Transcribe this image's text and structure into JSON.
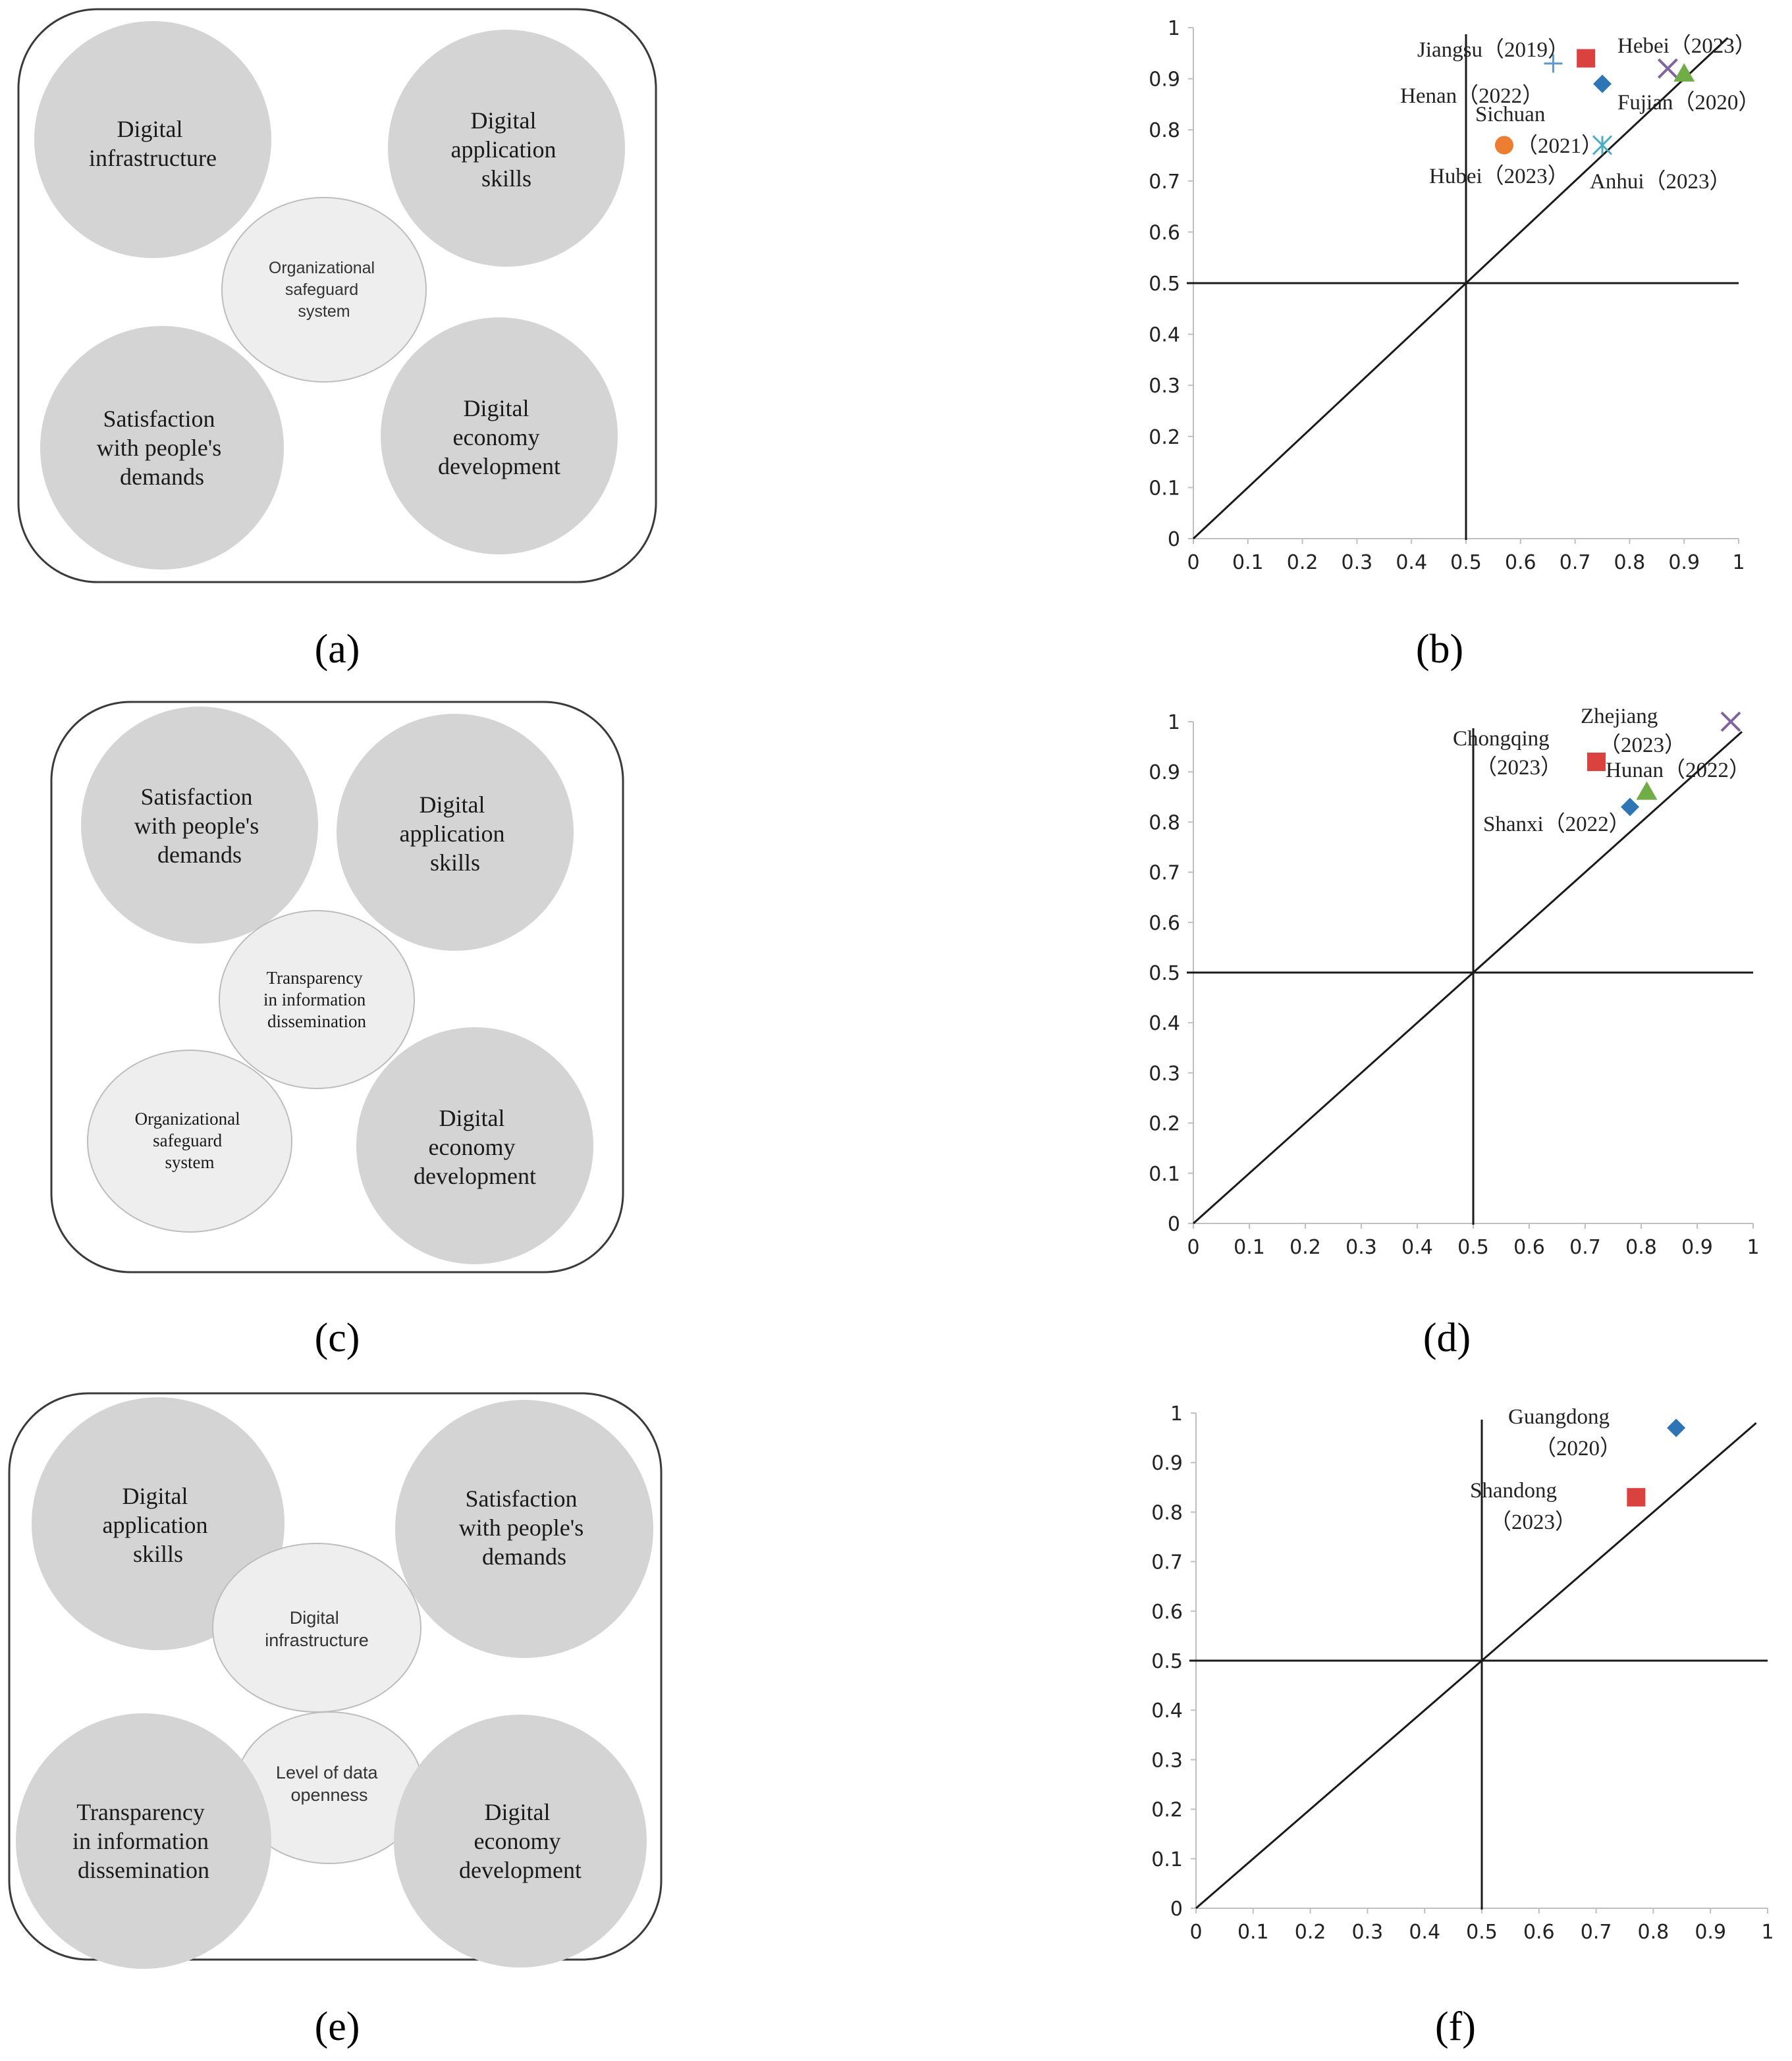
{
  "panels": {
    "a": {
      "caption": "(a)",
      "bubbles": [
        {
          "lines": [
            "Digital",
            "infrastructure"
          ]
        },
        {
          "lines": [
            "Digital",
            "application",
            "skills"
          ]
        },
        {
          "lines": [
            "Organizational",
            "safeguard",
            "system"
          ]
        },
        {
          "lines": [
            "Satisfaction",
            "with people's",
            "demands"
          ]
        },
        {
          "lines": [
            "Digital",
            "economy",
            "development"
          ]
        }
      ]
    },
    "c": {
      "caption": "(c)",
      "bubbles": [
        {
          "lines": [
            "Satisfaction",
            "with people's",
            "demands"
          ]
        },
        {
          "lines": [
            "Digital",
            "application",
            "skills"
          ]
        },
        {
          "lines": [
            "Transparency",
            "in information",
            "dissemination"
          ]
        },
        {
          "lines": [
            "Organizational",
            "safeguard",
            "system"
          ]
        },
        {
          "lines": [
            "Digital",
            "economy",
            "development"
          ]
        }
      ]
    },
    "e": {
      "caption": "(e)",
      "bubbles": [
        {
          "lines": [
            "Digital",
            "application",
            "skills"
          ]
        },
        {
          "lines": [
            "Satisfaction",
            "with people's",
            "demands"
          ]
        },
        {
          "lines": [
            "Digital",
            "infrastructure"
          ]
        },
        {
          "lines": [
            "Level of data",
            "openness"
          ]
        },
        {
          "lines": [
            "Transparency",
            "in information",
            "dissemination"
          ]
        },
        {
          "lines": [
            "Digital",
            "economy",
            "development"
          ]
        }
      ]
    }
  },
  "chart_data": [
    {
      "panel": "(b)",
      "type": "scatter",
      "xlim": [
        0,
        1
      ],
      "ylim": [
        0,
        1
      ],
      "x_ticks": [
        "0",
        "0.1",
        "0.2",
        "0.3",
        "0.4",
        "0.5",
        "0.6",
        "0.7",
        "0.8",
        "0.9",
        "1"
      ],
      "y_ticks": [
        "0",
        "0.1",
        "0.2",
        "0.3",
        "0.4",
        "0.5",
        "0.6",
        "0.7",
        "0.8",
        "0.9",
        "1"
      ],
      "reference_lines": [
        "x = 0.5",
        "y = 0.5",
        "y = x"
      ],
      "points": [
        {
          "label": "Jiangsu（2019）",
          "x": 0.66,
          "y": 0.93,
          "marker": "plus",
          "color": "#5b9bd5"
        },
        {
          "label": "",
          "x": 0.72,
          "y": 0.94,
          "marker": "square",
          "color": "#d9423f"
        },
        {
          "label": "Henan（2022）",
          "x": 0.75,
          "y": 0.89,
          "marker": "diamond",
          "color": "#2e75b6"
        },
        {
          "label": "Hebei（2023）",
          "x": 0.87,
          "y": 0.92,
          "marker": "x",
          "color": "#8064a2"
        },
        {
          "label": "Fujian（2020）",
          "x": 0.9,
          "y": 0.91,
          "marker": "triangle",
          "color": "#70ad47"
        },
        {
          "label": "Sichuan（2021）",
          "x": 0.57,
          "y": 0.77,
          "marker": "circle",
          "color": "#ed7d31"
        },
        {
          "label": "Hubei（2023）",
          "x": 0.75,
          "y": 0.77,
          "marker": "star",
          "color": "#4bacc6"
        },
        {
          "label": "Anhui（2023）",
          "x": 0.75,
          "y": 0.77,
          "marker": "none",
          "color": "#4bacc6"
        }
      ],
      "labels": [
        {
          "text": "Jiangsu（2019）"
        },
        {
          "text": "Hebei（2023）"
        },
        {
          "text": "Henan（2022）"
        },
        {
          "text": "Fujian（2020）"
        },
        {
          "text": "Sichuan"
        },
        {
          "text": "（2021）"
        },
        {
          "text": "Hubei（2023）"
        },
        {
          "text": "Anhui（2023）"
        }
      ]
    },
    {
      "panel": "(d)",
      "type": "scatter",
      "xlim": [
        0,
        1
      ],
      "ylim": [
        0,
        1
      ],
      "x_ticks": [
        "0",
        "0.1",
        "0.2",
        "0.3",
        "0.4",
        "0.5",
        "0.6",
        "0.7",
        "0.8",
        "0.9",
        "1"
      ],
      "y_ticks": [
        "0",
        "0.1",
        "0.2",
        "0.3",
        "0.4",
        "0.5",
        "0.6",
        "0.7",
        "0.8",
        "0.9",
        "1"
      ],
      "reference_lines": [
        "x = 0.5",
        "y = 0.5",
        "y = x"
      ],
      "points": [
        {
          "label": "Zhejiang（2023）",
          "x": 0.96,
          "y": 1.0,
          "marker": "x",
          "color": "#8064a2"
        },
        {
          "label": "Chongqing（2023）",
          "x": 0.72,
          "y": 0.92,
          "marker": "square",
          "color": "#d9423f"
        },
        {
          "label": "Hunan（2022）",
          "x": 0.81,
          "y": 0.86,
          "marker": "triangle",
          "color": "#70ad47"
        },
        {
          "label": "Shanxi（2022）",
          "x": 0.78,
          "y": 0.83,
          "marker": "diamond",
          "color": "#2e75b6"
        }
      ],
      "labels": [
        {
          "text": "Zhejiang"
        },
        {
          "text": "（2023）"
        },
        {
          "text": "Chongqing"
        },
        {
          "text": "（2023）"
        },
        {
          "text": "Hunan（2022）"
        },
        {
          "text": "Shanxi（2022）"
        }
      ]
    },
    {
      "panel": "(f)",
      "type": "scatter",
      "xlim": [
        0,
        1
      ],
      "ylim": [
        0,
        1
      ],
      "x_ticks": [
        "0",
        "0.1",
        "0.2",
        "0.3",
        "0.4",
        "0.5",
        "0.6",
        "0.7",
        "0.8",
        "0.9",
        "1"
      ],
      "y_ticks": [
        "0",
        "0.1",
        "0.2",
        "0.3",
        "0.4",
        "0.5",
        "0.6",
        "0.7",
        "0.8",
        "0.9",
        "1"
      ],
      "reference_lines": [
        "x = 0.5",
        "y = 0.5",
        "y = x"
      ],
      "points": [
        {
          "label": "Guangdong（2020）",
          "x": 0.84,
          "y": 0.97,
          "marker": "diamond",
          "color": "#2e75b6"
        },
        {
          "label": "Shandong（2023）",
          "x": 0.77,
          "y": 0.83,
          "marker": "square",
          "color": "#d9423f"
        }
      ],
      "labels": [
        {
          "text": "Guangdong"
        },
        {
          "text": "（2020）"
        },
        {
          "text": "Shandong"
        },
        {
          "text": "（2023）"
        }
      ]
    }
  ]
}
